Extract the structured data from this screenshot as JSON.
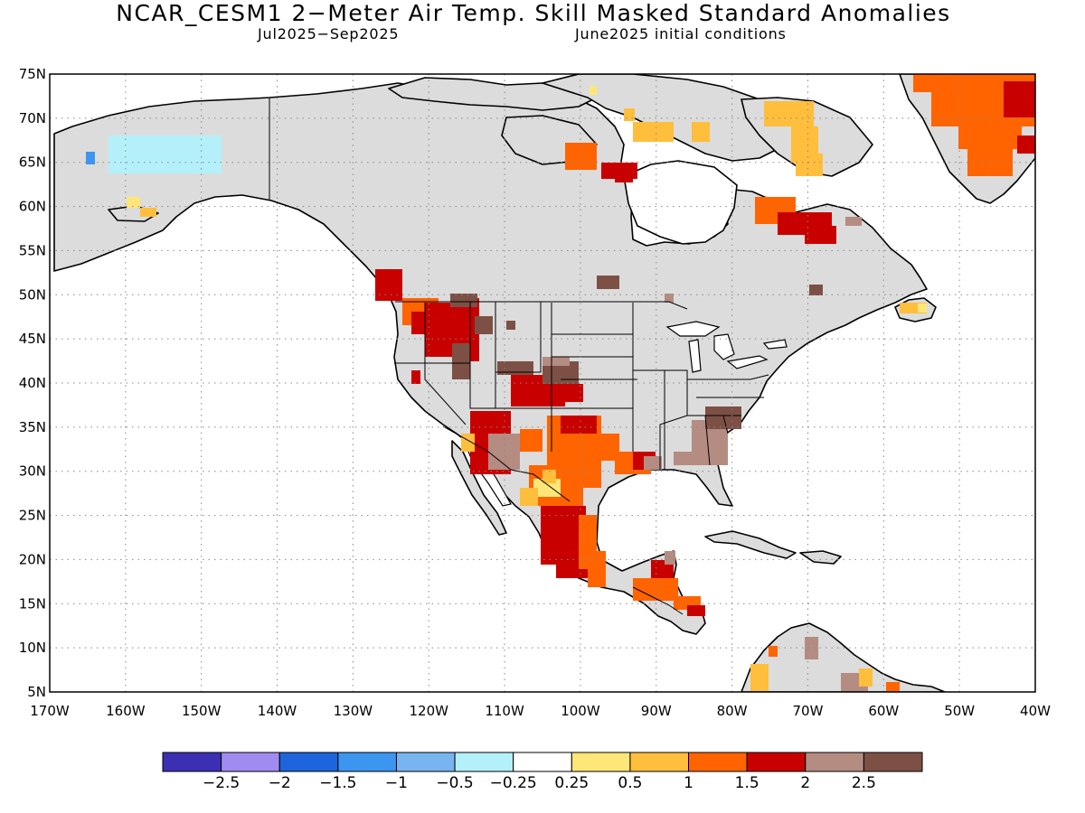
{
  "title": "NCAR_CESM1 2−Meter Air Temp. Skill Masked Standard Anomalies",
  "subtitle_left": "Jul2025−Sep2025",
  "subtitle_right": "June2025 initial conditions",
  "map": {
    "lon_range": [
      -170,
      -40
    ],
    "lat_range": [
      5,
      75
    ],
    "lon_ticks": [
      "170W",
      "160W",
      "150W",
      "140W",
      "130W",
      "120W",
      "110W",
      "100W",
      "90W",
      "80W",
      "70W",
      "60W",
      "50W",
      "40W"
    ],
    "lat_ticks": [
      "5N",
      "10N",
      "15N",
      "20N",
      "25N",
      "30N",
      "35N",
      "40N",
      "45N",
      "50N",
      "55N",
      "60N",
      "65N",
      "70N",
      "75N"
    ],
    "gridlines": "dotted",
    "masked_color": "#dcdcdc"
  },
  "colorbar": {
    "colors": [
      "#3c2fb4",
      "#a08cf0",
      "#1e64dc",
      "#3c96f0",
      "#78b4f0",
      "#b4f0fa",
      "#ffffff",
      "#ffe678",
      "#ffbe3c",
      "#ff6400",
      "#c80000",
      "#b48c82",
      "#7d5046"
    ],
    "labels": [
      "−2.5",
      "−2",
      "−1.5",
      "−1",
      "−0.5",
      "−0.25",
      "0.25",
      "0.5",
      "1",
      "1.5",
      "2",
      "2.5"
    ]
  }
}
